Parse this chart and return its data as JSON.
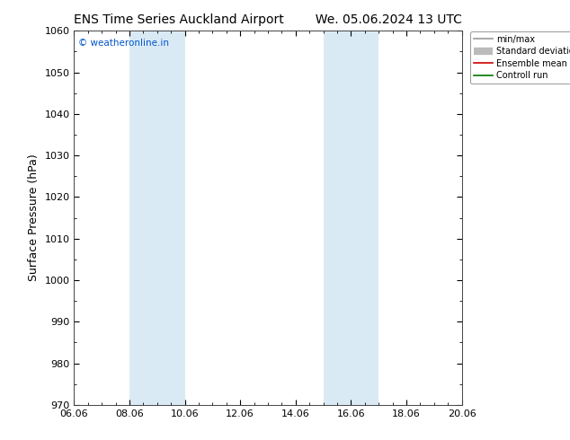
{
  "title_left": "ENS Time Series Auckland Airport",
  "title_right": "We. 05.06.2024 13 UTC",
  "ylabel": "Surface Pressure (hPa)",
  "ylim": [
    970,
    1060
  ],
  "yticks": [
    970,
    980,
    990,
    1000,
    1010,
    1020,
    1030,
    1040,
    1050,
    1060
  ],
  "xlim": [
    0,
    14
  ],
  "xtick_positions": [
    0,
    2,
    4,
    6,
    8,
    10,
    12,
    14
  ],
  "xtick_labels": [
    "06.06",
    "08.06",
    "10.06",
    "12.06",
    "14.06",
    "16.06",
    "18.06",
    "20.06"
  ],
  "shaded_bands": [
    {
      "xmin": 2.0,
      "xmax": 4.0
    },
    {
      "xmin": 9.0,
      "xmax": 11.0
    }
  ],
  "shade_color": "#daeaf5",
  "watermark_text": "© weatheronline.in",
  "watermark_color": "#0055cc",
  "legend_labels": [
    "min/max",
    "Standard deviation",
    "Ensemble mean run",
    "Controll run"
  ],
  "legend_colors": [
    "#999999",
    "#bbbbbb",
    "#cc0000",
    "#007700"
  ],
  "background_color": "#ffffff",
  "title_fontsize": 10,
  "axis_label_fontsize": 9,
  "tick_fontsize": 8
}
